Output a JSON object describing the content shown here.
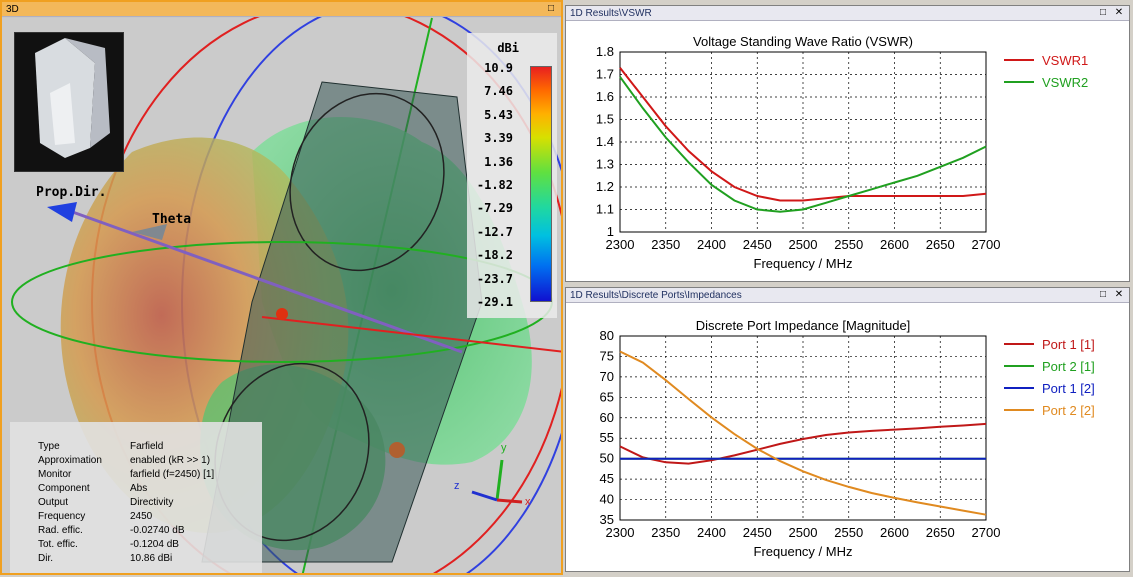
{
  "view3d": {
    "title": "3D",
    "maximize_btn": "□",
    "colorscale": {
      "unit": "dBi",
      "labels": [
        "10.9",
        "7.46",
        "5.43",
        "3.39",
        "1.36",
        "-1.82",
        "-7.29",
        "-12.7",
        "-18.2",
        "-23.7",
        "-29.1"
      ]
    },
    "axis_labels": {
      "prop_dir": "Prop.Dir.",
      "theta": "Theta"
    },
    "triad": {
      "y": "y",
      "z": "z",
      "x": "x"
    },
    "info": [
      {
        "key": "Type",
        "value": "Farfield"
      },
      {
        "key": "Approximation",
        "value": "enabled (kR >> 1)"
      },
      {
        "key": "Monitor",
        "value": "farfield (f=2450) [1]"
      },
      {
        "key": "Component",
        "value": "Abs"
      },
      {
        "key": "Output",
        "value": "Directivity"
      },
      {
        "key": "Frequency",
        "value": "2450"
      },
      {
        "key": "Rad. effic.",
        "value": "-0.02740 dB"
      },
      {
        "key": "Tot. effic.",
        "value": "-0.1204 dB"
      },
      {
        "key": "Dir.",
        "value": "10.86 dBi"
      }
    ],
    "colors": {
      "pattern_green": "#6dd07a",
      "pattern_orange": "#d98a4a",
      "circle_red": "#e02020",
      "circle_blue": "#3040e0",
      "circle_green": "#20b020"
    }
  },
  "vswr_window": {
    "title": "1D Results\\VSWR",
    "minimize_btn": "□",
    "close_btn": "✕",
    "chart_data": {
      "type": "line",
      "title": "Voltage Standing Wave Ratio (VSWR)",
      "xlabel": "Frequency / MHz",
      "ylabel": "",
      "xlim": [
        2300,
        2700
      ],
      "ylim": [
        1,
        1.8
      ],
      "xticks": [
        2300,
        2350,
        2400,
        2450,
        2500,
        2550,
        2600,
        2650,
        2700
      ],
      "yticks": [
        1,
        1.1,
        1.2,
        1.3,
        1.4,
        1.5,
        1.6,
        1.7,
        1.8
      ],
      "ytick_labels": [
        "1",
        "1.1",
        "1.2",
        "1.3",
        "1.4",
        "1.5",
        "1.6",
        "1.7",
        "1.8"
      ],
      "grid": true,
      "series": [
        {
          "name": "VSWR1",
          "color": "#d01818",
          "x": [
            2300,
            2325,
            2350,
            2375,
            2400,
            2425,
            2450,
            2475,
            2500,
            2525,
            2550,
            2575,
            2600,
            2625,
            2650,
            2675,
            2700
          ],
          "values": [
            1.73,
            1.6,
            1.47,
            1.36,
            1.27,
            1.2,
            1.16,
            1.14,
            1.14,
            1.15,
            1.16,
            1.16,
            1.16,
            1.16,
            1.16,
            1.16,
            1.17
          ]
        },
        {
          "name": "VSWR2",
          "color": "#20a020",
          "x": [
            2300,
            2325,
            2350,
            2375,
            2400,
            2425,
            2450,
            2475,
            2500,
            2525,
            2550,
            2575,
            2600,
            2625,
            2650,
            2675,
            2700
          ],
          "values": [
            1.69,
            1.55,
            1.42,
            1.31,
            1.21,
            1.14,
            1.1,
            1.09,
            1.1,
            1.13,
            1.16,
            1.19,
            1.22,
            1.25,
            1.29,
            1.33,
            1.38
          ]
        }
      ]
    }
  },
  "impedance_window": {
    "title": "1D Results\\Discrete Ports\\Impedances",
    "minimize_btn": "□",
    "close_btn": "✕",
    "chart_data": {
      "type": "line",
      "title": "Discrete Port Impedance [Magnitude]",
      "xlabel": "Frequency / MHz",
      "ylabel": "",
      "xlim": [
        2300,
        2700
      ],
      "ylim": [
        35,
        80
      ],
      "xticks": [
        2300,
        2350,
        2400,
        2450,
        2500,
        2550,
        2600,
        2650,
        2700
      ],
      "yticks": [
        35,
        40,
        45,
        50,
        55,
        60,
        65,
        70,
        75,
        80
      ],
      "ytick_labels": [
        "35",
        "40",
        "45",
        "50",
        "55",
        "60",
        "65",
        "70",
        "75",
        "80"
      ],
      "grid": true,
      "series": [
        {
          "name": "Port 1 [1]",
          "color": "#c01818",
          "x": [
            2300,
            2325,
            2350,
            2375,
            2400,
            2425,
            2450,
            2475,
            2500,
            2525,
            2550,
            2575,
            2600,
            2625,
            2650,
            2675,
            2700
          ],
          "values": [
            53,
            50.3,
            49.1,
            48.8,
            49.6,
            50.8,
            52.2,
            53.6,
            54.8,
            55.8,
            56.4,
            56.8,
            57.1,
            57.4,
            57.8,
            58.1,
            58.5
          ]
        },
        {
          "name": "Port 2 [1]",
          "color": "#20a020",
          "x": [
            2300,
            2700
          ],
          "values": [
            50,
            50
          ]
        },
        {
          "name": "Port 1 [2]",
          "color": "#1020c0",
          "x": [
            2300,
            2700
          ],
          "values": [
            50,
            50
          ]
        },
        {
          "name": "Port 2 [2]",
          "color": "#e08a20",
          "x": [
            2300,
            2325,
            2350,
            2375,
            2400,
            2425,
            2450,
            2475,
            2500,
            2525,
            2550,
            2575,
            2600,
            2625,
            2650,
            2675,
            2700
          ],
          "values": [
            76.2,
            73.5,
            69.2,
            64.6,
            60.1,
            56,
            52.4,
            49.4,
            46.9,
            44.8,
            43.1,
            41.6,
            40.4,
            39.3,
            38.3,
            37.3,
            36.3
          ]
        }
      ]
    }
  }
}
